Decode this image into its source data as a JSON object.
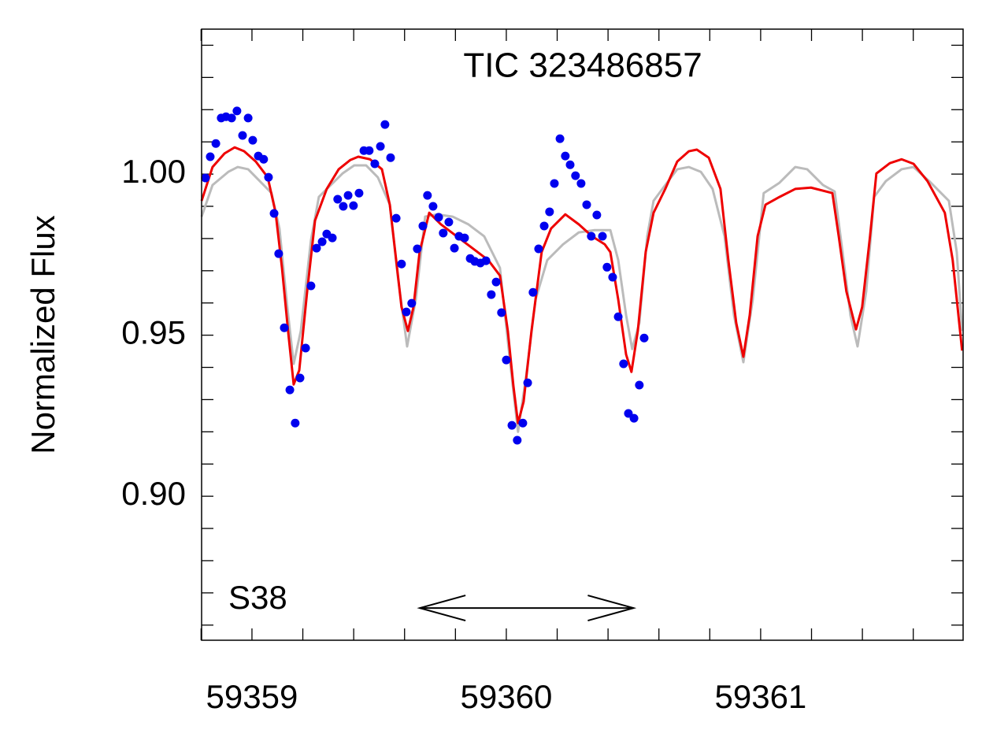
{
  "chart_data": {
    "type": "scatter",
    "title": "TIC 323486857",
    "y_label": "Normalized Flux",
    "annotation": "S38",
    "arrow": {
      "x": [
        59359.66,
        59360.5
      ],
      "y": 0.8653
    },
    "xlim": [
      59358.802,
      59361.796
    ],
    "ylim": [
      0.8553,
      1.045
    ],
    "xticks": [
      59359,
      59360,
      59361
    ],
    "yticks": [
      {
        "value": 0.9,
        "label": "0.90"
      },
      {
        "value": 0.95,
        "label": "0.95"
      },
      {
        "value": 1.0,
        "label": "1.00"
      }
    ],
    "xminorticks": [
      59358.8,
      59359.2,
      59359.4,
      59359.6,
      59359.8,
      59360.2,
      59360.4,
      59360.6,
      59360.8,
      59361.2,
      59361.4,
      59361.6
    ],
    "yminorticks": [
      0.86,
      0.87,
      0.88,
      0.89,
      0.91,
      0.92,
      0.93,
      0.94,
      0.96,
      0.97,
      0.98,
      0.99,
      1.01,
      1.02,
      1.03,
      1.04
    ],
    "series": [
      {
        "mode": "line",
        "color": "#bbbbbb",
        "x": [
          59358.802,
          59358.845,
          59358.907,
          59358.944,
          59358.985,
          59359.031,
          59359.077,
          59359.108,
          59359.139,
          59359.164,
          59359.192,
          59359.232,
          59359.263,
          59359.31,
          59359.356,
          59359.402,
          59359.449,
          59359.495,
          59359.542,
          59359.573,
          59359.61,
          59359.644,
          59359.681,
          59359.728,
          59359.789,
          59359.851,
          59359.913,
          59359.975,
          59360.015,
          59360.046,
          59360.077,
          59360.115,
          59360.161,
          59360.223,
          59360.285,
          59360.347,
          59360.409,
          59360.44,
          59360.471,
          59360.495,
          59360.523,
          59360.554,
          59360.579,
          59360.625,
          59360.672,
          59360.718,
          59360.765,
          59360.811,
          59360.858,
          59360.895,
          59360.932,
          59360.969,
          59361.012,
          59361.074,
          59361.136,
          59361.183,
          59361.245,
          59361.291,
          59361.322,
          59361.353,
          59361.381,
          59361.415,
          59361.446,
          59361.492,
          59361.554,
          59361.601,
          59361.663,
          59361.74,
          59361.771,
          59361.792
        ],
        "values": [
          0.9868,
          0.9966,
          1.0007,
          1.0022,
          1.0015,
          0.9978,
          0.9941,
          0.9831,
          0.9587,
          0.9411,
          0.9513,
          0.9795,
          0.9929,
          0.9966,
          1.0002,
          1.0027,
          1.0027,
          0.999,
          0.9905,
          0.9685,
          0.9465,
          0.9611,
          0.9868,
          0.9875,
          0.9868,
          0.9844,
          0.9807,
          0.9709,
          0.9416,
          0.92,
          0.9367,
          0.9611,
          0.9733,
          0.9782,
          0.9819,
          0.9826,
          0.9826,
          0.9733,
          0.9562,
          0.9457,
          0.9538,
          0.9807,
          0.9917,
          0.9966,
          1.0015,
          1.0022,
          1.0007,
          0.9954,
          0.9807,
          0.9562,
          0.9416,
          0.9611,
          0.9941,
          0.9973,
          1.0022,
          1.0015,
          0.9966,
          0.9946,
          0.9758,
          0.9562,
          0.9465,
          0.9636,
          0.9929,
          0.9978,
          1.0015,
          1.0022,
          0.9978,
          0.9917,
          0.9758,
          0.9513
        ]
      },
      {
        "mode": "line",
        "color": "#ee0000",
        "x": [
          59358.802,
          59358.845,
          59358.892,
          59358.932,
          59358.969,
          59359.015,
          59359.062,
          59359.093,
          59359.118,
          59359.142,
          59359.164,
          59359.186,
          59359.217,
          59359.248,
          59359.294,
          59359.341,
          59359.387,
          59359.418,
          59359.464,
          59359.511,
          59359.542,
          59359.567,
          59359.588,
          59359.613,
          59359.635,
          59359.659,
          59359.697,
          59359.743,
          59359.805,
          59359.867,
          59359.929,
          59359.975,
          59360.006,
          59360.028,
          59360.046,
          59360.068,
          59360.099,
          59360.139,
          59360.176,
          59360.232,
          59360.285,
          59360.337,
          59360.387,
          59360.409,
          59360.44,
          59360.471,
          59360.492,
          59360.517,
          59360.548,
          59360.579,
          59360.625,
          59360.672,
          59360.718,
          59360.749,
          59360.796,
          59360.842,
          59360.873,
          59360.904,
          59360.932,
          59360.957,
          59360.988,
          59361.019,
          59361.074,
          59361.136,
          59361.198,
          59361.282,
          59361.307,
          59361.337,
          59361.375,
          59361.399,
          59361.43,
          59361.455,
          59361.508,
          59361.554,
          59361.601,
          59361.656,
          59361.724,
          59361.755,
          59361.792
        ],
        "values": [
          0.9917,
          1.0022,
          1.0064,
          1.0083,
          1.0071,
          1.0039,
          0.999,
          0.988,
          0.9709,
          0.9513,
          0.9347,
          0.9391,
          0.9636,
          0.9856,
          0.9954,
          1.0015,
          1.0044,
          1.0054,
          1.0046,
          1.0015,
          0.9905,
          0.9733,
          0.9587,
          0.9513,
          0.9587,
          0.9758,
          0.988,
          0.9844,
          0.9807,
          0.977,
          0.9733,
          0.9685,
          0.9513,
          0.9342,
          0.9227,
          0.9293,
          0.9513,
          0.9758,
          0.9831,
          0.9875,
          0.9844,
          0.9807,
          0.9782,
          0.9758,
          0.9611,
          0.944,
          0.9386,
          0.9513,
          0.9758,
          0.988,
          0.9954,
          1.0039,
          1.0071,
          1.0076,
          1.0051,
          0.9954,
          0.9733,
          0.9538,
          0.9433,
          0.9562,
          0.9807,
          0.9905,
          0.9929,
          0.9954,
          0.9958,
          0.9941,
          0.9807,
          0.9636,
          0.9518,
          0.9587,
          0.9807,
          1.0002,
          1.0034,
          1.0046,
          1.0032,
          0.9978,
          0.988,
          0.9733,
          0.9452
        ]
      },
      {
        "mode": "markers",
        "color": "#0000ee",
        "x": [
          59358.817,
          59358.836,
          59358.858,
          59358.879,
          59358.898,
          59358.92,
          59358.941,
          59358.963,
          59358.985,
          59359.003,
          59359.025,
          59359.046,
          59359.065,
          59359.087,
          59359.105,
          59359.127,
          59359.149,
          59359.17,
          59359.189,
          59359.211,
          59359.232,
          59359.254,
          59359.276,
          59359.294,
          59359.316,
          59359.337,
          59359.359,
          59359.378,
          59359.399,
          59359.421,
          59359.44,
          59359.461,
          59359.483,
          59359.505,
          59359.523,
          59359.545,
          59359.567,
          59359.588,
          59359.607,
          59359.628,
          59359.65,
          59359.672,
          59359.69,
          59359.712,
          59359.734,
          59359.752,
          59359.774,
          59359.796,
          59359.814,
          59359.836,
          59359.858,
          59359.876,
          59359.898,
          59359.92,
          59359.941,
          59359.96,
          59359.981,
          59360.0,
          59360.022,
          59360.043,
          59360.065,
          59360.084,
          59360.105,
          59360.127,
          59360.149,
          59360.17,
          59360.189,
          59360.211,
          59360.232,
          59360.251,
          59360.272,
          59360.294,
          59360.316,
          59360.334,
          59360.356,
          59360.378,
          59360.396,
          59360.418,
          59360.44,
          59360.461,
          59360.48,
          59360.502,
          59360.523,
          59360.542
        ],
        "values": [
          0.9988,
          1.0054,
          1.0095,
          1.0174,
          1.0178,
          1.0174,
          1.0196,
          1.012,
          1.0174,
          1.0105,
          1.0056,
          1.0046,
          0.999,
          0.9878,
          0.9753,
          0.9523,
          0.933,
          0.9227,
          0.9367,
          0.946,
          0.9653,
          0.977,
          0.979,
          0.9814,
          0.9802,
          0.9922,
          0.99,
          0.9934,
          0.9902,
          0.9941,
          1.0073,
          1.0073,
          1.0032,
          1.0086,
          1.0154,
          1.0051,
          0.9863,
          0.9721,
          0.9572,
          0.9599,
          0.9768,
          0.9839,
          0.9934,
          0.99,
          0.9866,
          0.9817,
          0.9851,
          0.977,
          0.9807,
          0.9802,
          0.9738,
          0.9729,
          0.9724,
          0.9731,
          0.9626,
          0.9665,
          0.957,
          0.9423,
          0.922,
          0.9174,
          0.9227,
          0.9352,
          0.9633,
          0.9768,
          0.9839,
          0.9883,
          0.9971,
          1.011,
          1.0056,
          1.0029,
          0.9995,
          0.9971,
          0.9905,
          0.9807,
          0.9873,
          0.9807,
          0.9711,
          0.968,
          0.9557,
          0.9411,
          0.9257,
          0.9242,
          0.9345,
          0.9491
        ]
      }
    ]
  }
}
